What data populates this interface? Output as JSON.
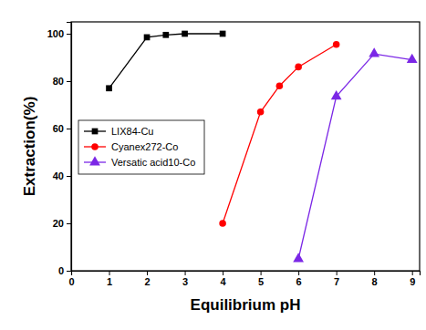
{
  "chart_data": {
    "type": "line",
    "x_label": "Equilibrium pH",
    "y_label": "Extraction(%)",
    "xlim": [
      0,
      9.2
    ],
    "ylim": [
      0,
      105
    ],
    "xticks": [
      0,
      1,
      2,
      3,
      4,
      5,
      6,
      7,
      8,
      9
    ],
    "yticks": [
      0,
      20,
      40,
      60,
      80,
      100
    ],
    "grid": false,
    "legend": "upper left",
    "series": [
      {
        "name": "LIX84-Cu",
        "color": "#000000",
        "marker": "square",
        "line_style": "solid",
        "x": [
          1,
          2,
          2.5,
          3,
          4
        ],
        "values": [
          77,
          98.5,
          99.5,
          100,
          100
        ]
      },
      {
        "name": "Cyanex272-Co",
        "color": "#ff0000",
        "marker": "circle",
        "line_style": "solid",
        "x": [
          4,
          5,
          5.5,
          6,
          7
        ],
        "values": [
          20,
          67,
          78,
          86,
          95.5
        ]
      },
      {
        "name": "Versatic acid10-Co",
        "color": "#7b27e6",
        "marker": "triangle",
        "line_style": "solid",
        "x": [
          6,
          7,
          8,
          9
        ],
        "values": [
          5,
          73.5,
          91.5,
          89
        ]
      }
    ]
  }
}
